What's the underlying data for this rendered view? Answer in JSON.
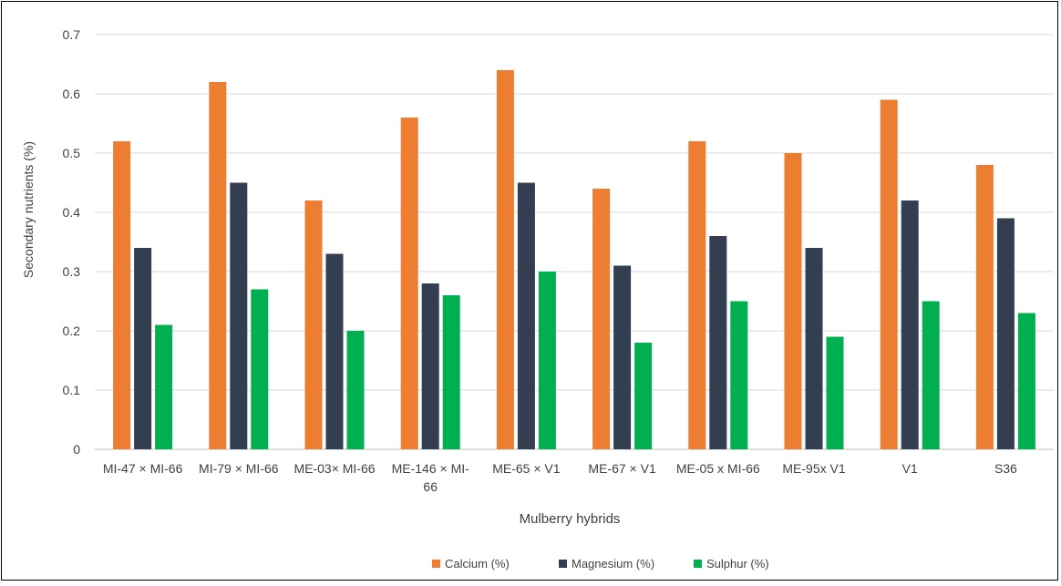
{
  "chart_data": {
    "type": "bar",
    "title": "",
    "xlabel": "Mulberry hybrids",
    "ylabel": "Secondary nutrients (%)",
    "ylim": [
      0,
      0.7
    ],
    "yticks": [
      "0",
      "0.1",
      "0.2",
      "0.3",
      "0.4",
      "0.5",
      "0.6",
      "0.7"
    ],
    "grid": true,
    "legend_position": "bottom",
    "categories": [
      [
        "MI-47 × MI-66"
      ],
      [
        "MI-79 × MI-66"
      ],
      [
        "ME-03× MI-66"
      ],
      [
        "ME-146 × MI-",
        "66"
      ],
      [
        "ME-65 × V1"
      ],
      [
        "ME-67 × V1"
      ],
      [
        "ME-05 x MI-66"
      ],
      [
        "ME-95x V1"
      ],
      [
        "V1"
      ],
      [
        "S36"
      ]
    ],
    "series": [
      {
        "name": "Calcium (%)",
        "color": "#ED7D31",
        "values": [
          0.52,
          0.62,
          0.42,
          0.56,
          0.64,
          0.44,
          0.52,
          0.5,
          0.59,
          0.48
        ]
      },
      {
        "name": "Magnesium (%)",
        "color": "#333F50",
        "values": [
          0.34,
          0.45,
          0.33,
          0.28,
          0.45,
          0.31,
          0.36,
          0.34,
          0.42,
          0.39
        ]
      },
      {
        "name": "Sulphur (%)",
        "color": "#00B050",
        "values": [
          0.21,
          0.27,
          0.2,
          0.26,
          0.3,
          0.18,
          0.25,
          0.19,
          0.25,
          0.23
        ]
      }
    ]
  }
}
